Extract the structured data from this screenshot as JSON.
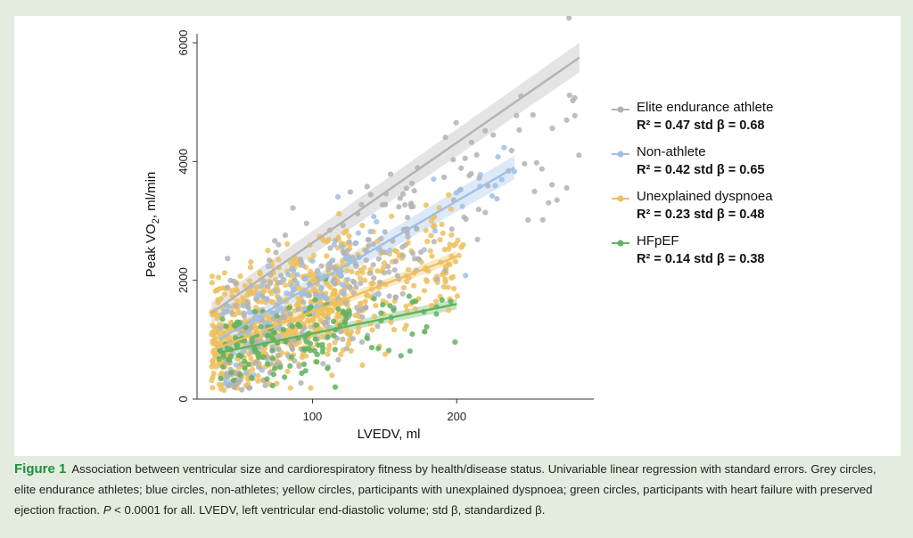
{
  "chart_data": {
    "type": "scatter",
    "xlabel": "LVEDV, ml",
    "ylabel_main": "Peak VO",
    "ylabel_sub": "2",
    "ylabel_rest": ", ml/min",
    "x_ticks": [
      100,
      200
    ],
    "y_ticks": [
      0,
      2000,
      4000,
      6000
    ],
    "xlim": [
      20,
      295
    ],
    "ylim": [
      0,
      6150
    ],
    "series": [
      {
        "name": "Elite endurance athlete",
        "stat": "R² = 0.47  std β = 0.68",
        "color": "#b3b3b3",
        "fit": {
          "x": [
            30,
            285
          ],
          "y": [
            1450,
            5750
          ]
        },
        "ci_width": [
          180,
          250
        ],
        "cloud": {
          "x_range": [
            40,
            285
          ],
          "center": [
            90,
            1500
          ],
          "slope": 17,
          "spread": 650,
          "n": 330
        }
      },
      {
        "name": "Non-athlete",
        "stat": "R² = 0.42 std β = 0.65",
        "color": "#9dbfe6",
        "fit": {
          "x": [
            35,
            240
          ],
          "y": [
            1000,
            3900
          ]
        },
        "ci_width": [
          100,
          200
        ],
        "cloud": {
          "x_range": [
            35,
            240
          ],
          "center": [
            80,
            1500
          ],
          "slope": 14,
          "spread": 450,
          "n": 120
        }
      },
      {
        "name": "Unexplained dyspnoea",
        "stat": "R² = 0.23 std β = 0.48",
        "color": "#edbf5e",
        "fit": {
          "x": [
            30,
            200
          ],
          "y": [
            820,
            2400
          ]
        },
        "ci_width": [
          60,
          90
        ],
        "cloud": {
          "x_range": [
            30,
            205
          ],
          "center": [
            95,
            1500
          ],
          "slope": 9,
          "spread": 500,
          "n": 820
        }
      },
      {
        "name": "HFpEF",
        "stat": "R² = 0.14 std β = 0.38",
        "color": "#5fb35f",
        "fit": {
          "x": [
            35,
            200
          ],
          "y": [
            780,
            1600
          ]
        },
        "ci_width": [
          50,
          90
        ],
        "cloud": {
          "x_range": [
            35,
            200
          ],
          "center": [
            95,
            1050
          ],
          "slope": 5,
          "spread": 300,
          "n": 150
        }
      }
    ]
  },
  "caption": {
    "figure_label": "Figure 1",
    "text_1": "Association between ventricular size and cardiorespiratory fitness by health/disease status. Univariable linear regression with standard errors. Grey circles, elite endurance athletes; blue circles, non-athletes; yellow circles, participants with unexplained dyspnoea; green circles, participants with heart failure with preserved ejection fraction.",
    "p_symbol": "P",
    "text_2": " < 0.0001 for all. LVEDV, left ventricular end-diastolic volume; std β, standardized β."
  }
}
